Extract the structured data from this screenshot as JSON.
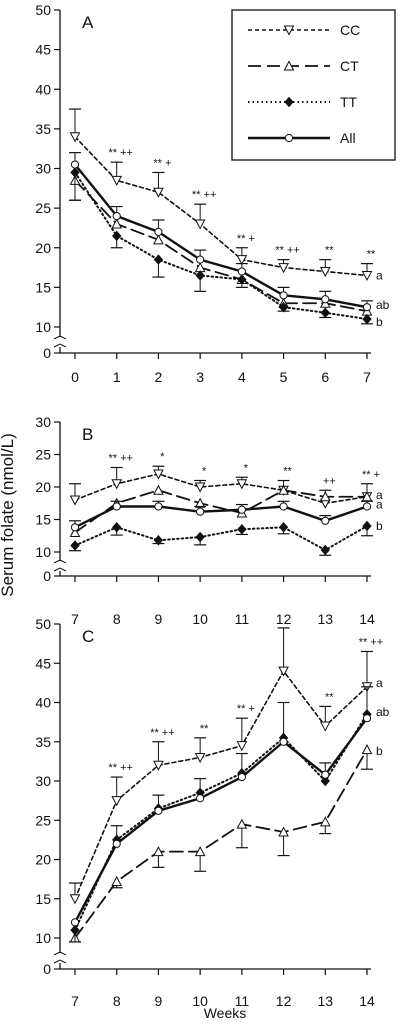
{
  "figure": {
    "ylabel": "Serum folate (nmol/L)",
    "xlabel": "Weeks"
  },
  "legend": [
    {
      "label": "CC",
      "dash": "4,3",
      "width": 1.6,
      "marker": "tri-down-open"
    },
    {
      "label": "CT",
      "dash": "13,6",
      "width": 1.8,
      "marker": "tri-up-open"
    },
    {
      "label": "TT",
      "dash": "1.5,3",
      "width": 2.0,
      "marker": "diamond-filled"
    },
    {
      "label": "All",
      "dash": "",
      "width": 2.4,
      "marker": "circle-open"
    }
  ],
  "chart_data": [
    {
      "type": "line",
      "panel_label": "A",
      "x": [
        0,
        1,
        2,
        3,
        4,
        5,
        6,
        7
      ],
      "xticks": [
        0,
        1,
        2,
        3,
        4,
        5,
        6,
        7
      ],
      "yticks": [
        0,
        10,
        15,
        20,
        25,
        30,
        35,
        40,
        45,
        50
      ],
      "ylim": [
        0,
        50
      ],
      "series": [
        {
          "name": "CC",
          "values": [
            34,
            28.5,
            27,
            23,
            18.5,
            17.5,
            17,
            16.5
          ],
          "err_up": [
            3.5,
            2.3,
            2.5,
            2.5,
            1.5,
            1.0,
            1.5,
            1.5
          ],
          "err_down": [
            0,
            0,
            0,
            0,
            0,
            0,
            0,
            0
          ]
        },
        {
          "name": "CT",
          "values": [
            28.5,
            23,
            21,
            17.5,
            16,
            13,
            13,
            12
          ],
          "err_up": [
            0,
            0,
            0,
            0,
            0,
            0,
            0,
            0
          ],
          "err_down": [
            2.5,
            0,
            0,
            0,
            0,
            0,
            0,
            0
          ]
        },
        {
          "name": "TT",
          "values": [
            29.5,
            21.5,
            18.5,
            16.5,
            16,
            12.5,
            11.8,
            11
          ],
          "err_up": [
            0,
            0,
            0,
            0,
            0,
            0,
            0,
            0
          ],
          "err_down": [
            3.5,
            1.5,
            2.2,
            2.0,
            1.0,
            0.5,
            0.6,
            0.6
          ]
        },
        {
          "name": "All",
          "values": [
            30.5,
            24,
            22,
            18.5,
            17,
            14,
            13.5,
            12.5
          ],
          "err_up": [
            1.5,
            1.2,
            1.5,
            1.2,
            1.0,
            1.0,
            1.0,
            0.8
          ],
          "err_down": [
            0,
            0,
            0,
            0,
            0,
            0,
            0,
            0
          ]
        }
      ],
      "annotations": [
        {
          "x": 1,
          "text": "** ++"
        },
        {
          "x": 2,
          "text": "** +"
        },
        {
          "x": 3,
          "text": "** ++"
        },
        {
          "x": 4,
          "text": "** +"
        },
        {
          "x": 5,
          "text": "** ++"
        },
        {
          "x": 6,
          "text": "**"
        },
        {
          "x": 7,
          "text": "**"
        }
      ],
      "end_labels": [
        {
          "text": "a",
          "y": 16.5
        },
        {
          "text": "ab",
          "y": 12.8
        },
        {
          "text": "b",
          "y": 10.6
        }
      ]
    },
    {
      "type": "line",
      "panel_label": "B",
      "x": [
        7,
        8,
        9,
        10,
        11,
        12,
        13,
        14
      ],
      "xticks": [
        7,
        8,
        9,
        10,
        11,
        12,
        13,
        14
      ],
      "yticks": [
        0,
        10,
        15,
        20,
        25,
        30
      ],
      "ylim": [
        0,
        30
      ],
      "series": [
        {
          "name": "CC",
          "values": [
            18,
            20.5,
            22,
            20,
            20.5,
            19.5,
            17.5,
            18.5
          ],
          "err_up": [
            2.5,
            2.5,
            1.2,
            1.0,
            1.0,
            1.5,
            2.0,
            2.0
          ],
          "err_down": [
            0,
            0,
            0,
            0,
            0,
            0,
            0,
            0
          ]
        },
        {
          "name": "CT",
          "values": [
            13,
            17.5,
            19.5,
            17.5,
            16,
            19.5,
            18.5,
            18.5
          ],
          "err_up": [
            0,
            0,
            0,
            0,
            0,
            0,
            0,
            0
          ],
          "err_down": [
            0,
            0,
            0,
            0,
            0,
            0,
            0,
            0
          ]
        },
        {
          "name": "TT",
          "values": [
            11,
            13.8,
            11.8,
            12.3,
            13.5,
            13.8,
            10.3,
            14
          ],
          "err_up": [
            0,
            0,
            0,
            0,
            0,
            0,
            0,
            0
          ],
          "err_down": [
            0.8,
            1.2,
            0.5,
            1.2,
            0.8,
            1.0,
            0.8,
            1.5
          ]
        },
        {
          "name": "All",
          "values": [
            13.8,
            17,
            17,
            16.2,
            16.5,
            17,
            14.8,
            17
          ],
          "err_up": [
            1.0,
            0.8,
            0.8,
            0.8,
            0.8,
            0.8,
            0.8,
            0.8
          ],
          "err_down": [
            0,
            0,
            0,
            0,
            0,
            0,
            0,
            0
          ]
        }
      ],
      "annotations": [
        {
          "x": 8,
          "text": "** ++"
        },
        {
          "x": 9,
          "text": "*"
        },
        {
          "x": 10,
          "text": "*"
        },
        {
          "x": 11,
          "text": "*"
        },
        {
          "x": 12,
          "text": "**"
        },
        {
          "x": 13,
          "text": "++"
        },
        {
          "x": 14,
          "text": "** +"
        }
      ],
      "end_labels": [
        {
          "text": "a",
          "y": 18.8
        },
        {
          "text": "a",
          "y": 17.3
        },
        {
          "text": "b",
          "y": 14
        }
      ]
    },
    {
      "type": "line",
      "panel_label": "C",
      "x": [
        7,
        8,
        9,
        10,
        11,
        12,
        13,
        14
      ],
      "xticks": [
        7,
        8,
        9,
        10,
        11,
        12,
        13,
        14
      ],
      "yticks": [
        0,
        10,
        15,
        20,
        25,
        30,
        35,
        40,
        45,
        50
      ],
      "ylim": [
        0,
        50
      ],
      "series": [
        {
          "name": "CC",
          "values": [
            15,
            27.5,
            32,
            33,
            34.5,
            44,
            37,
            42
          ],
          "err_up": [
            2.0,
            3.0,
            3.0,
            2.5,
            3.5,
            5.5,
            2.5,
            4.5
          ],
          "err_down": [
            0,
            0,
            0,
            0,
            0,
            0,
            0,
            0
          ]
        },
        {
          "name": "CT",
          "values": [
            10,
            17.2,
            21,
            21,
            24.5,
            23.5,
            24.8,
            34
          ],
          "err_up": [
            0,
            0,
            0,
            0,
            0,
            0,
            0,
            0
          ],
          "err_down": [
            0.5,
            0.8,
            2.0,
            2.5,
            3.0,
            3.0,
            1.5,
            2.5
          ]
        },
        {
          "name": "TT",
          "values": [
            11,
            22.5,
            26.5,
            28.5,
            31,
            35.5,
            30,
            38.5
          ],
          "err_up": [
            0,
            0,
            0,
            0,
            0,
            0,
            0,
            0
          ],
          "err_down": [
            0,
            0,
            0,
            0,
            0,
            0,
            0,
            0
          ]
        },
        {
          "name": "All",
          "values": [
            12,
            22,
            26.2,
            27.8,
            30.5,
            35,
            30.8,
            38
          ],
          "err_up": [
            0,
            2.3,
            2.0,
            2.5,
            3.0,
            5.0,
            1.5,
            4.0
          ],
          "err_down": [
            2.5,
            0,
            0,
            0,
            0,
            0,
            0,
            0
          ]
        }
      ],
      "annotations": [
        {
          "x": 8,
          "text": "** ++"
        },
        {
          "x": 9,
          "text": "** ++"
        },
        {
          "x": 10,
          "text": "**"
        },
        {
          "x": 11,
          "text": "** +"
        },
        {
          "x": 13,
          "text": "**"
        },
        {
          "x": 14,
          "text": "** ++"
        }
      ],
      "end_labels": [
        {
          "text": "a",
          "y": 42.5
        },
        {
          "text": "ab",
          "y": 38.8
        },
        {
          "text": "b",
          "y": 33.8
        }
      ]
    }
  ]
}
